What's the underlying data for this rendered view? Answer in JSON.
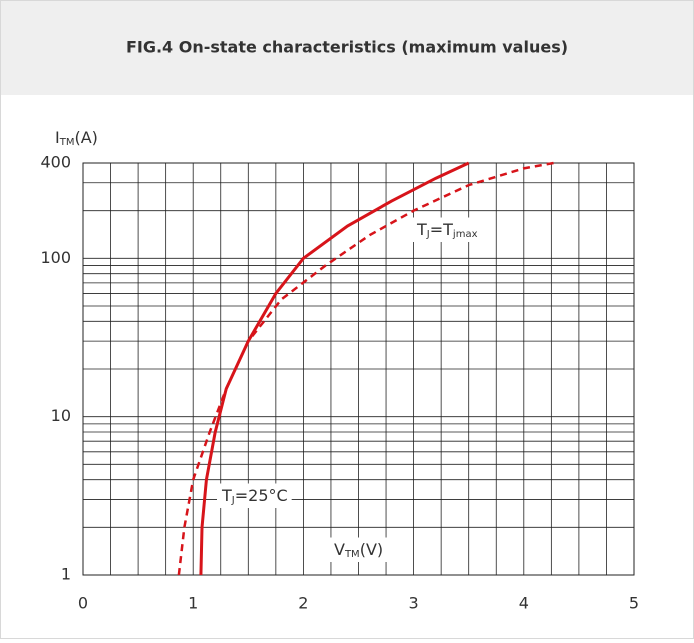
{
  "chart_data": {
    "type": "line",
    "title": "FIG.4 On-state characteristics (maximum values)",
    "y_label": [
      {
        "t": "I"
      },
      {
        "sub": "TM"
      },
      {
        "t": "(A)"
      }
    ],
    "x_label": [
      {
        "t": "V"
      },
      {
        "sub": "TM"
      },
      {
        "t": "(V)"
      }
    ],
    "xlim": [
      0,
      5
    ],
    "xticks": [
      0,
      1,
      2,
      3,
      4,
      5
    ],
    "ylim": [
      1,
      400
    ],
    "yticks": [
      1,
      10,
      100,
      400
    ],
    "log_y": true,
    "grid": true,
    "xgrid": [
      0,
      0.25,
      0.5,
      0.75,
      1,
      1.25,
      1.5,
      1.75,
      2,
      2.25,
      2.5,
      2.75,
      3,
      3.25,
      3.5,
      3.75,
      4,
      4.25,
      4.5,
      4.75,
      5
    ],
    "ygrid": [
      1,
      2,
      3,
      4,
      5,
      6,
      7,
      8,
      9,
      10,
      20,
      30,
      40,
      50,
      60,
      70,
      80,
      90,
      100,
      200,
      300,
      400
    ],
    "series": [
      {
        "label": [
          {
            "t": "T"
          },
          {
            "sub": "J"
          },
          {
            "t": "=25°C"
          }
        ],
        "color": "#d7141a",
        "dashed": false,
        "x": [
          1.07,
          1.08,
          1.12,
          1.2,
          1.3,
          1.5,
          1.75,
          2.0,
          2.4,
          2.8,
          3.2,
          3.5
        ],
        "y": [
          1,
          2,
          4,
          8,
          15,
          30,
          60,
          100,
          160,
          230,
          320,
          400
        ]
      },
      {
        "label": [
          {
            "t": "T"
          },
          {
            "sub": "J"
          },
          {
            "t": "=T"
          },
          {
            "sub": "jmax"
          }
        ],
        "color": "#d7141a",
        "dashed": true,
        "x": [
          0.87,
          0.92,
          1.0,
          1.15,
          1.3,
          1.5,
          1.8,
          2.2,
          2.6,
          3.0,
          3.5,
          4.0,
          4.27
        ],
        "y": [
          1,
          2,
          4,
          8,
          15,
          30,
          55,
          90,
          140,
          200,
          290,
          370,
          400
        ]
      }
    ]
  }
}
